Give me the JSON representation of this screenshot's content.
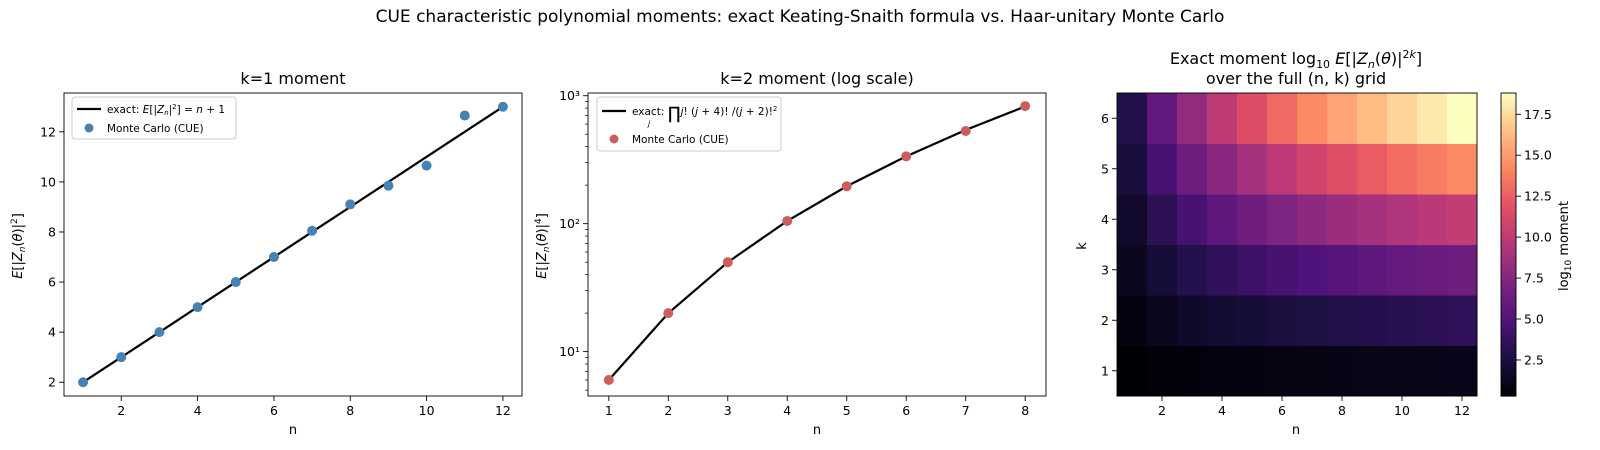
{
  "suptitle": "CUE characteristic polynomial moments: exact Keating-Snaith formula vs. Haar-unitary Monte Carlo",
  "chart_data": [
    {
      "type": "line",
      "title": "k=1 moment",
      "xlabel": "n",
      "ylabel": "E[|Z_n(θ)|²]",
      "xlim": [
        0.5,
        12.5
      ],
      "ylim": [
        1.45,
        13.55
      ],
      "xticks": [
        "2",
        "4",
        "6",
        "8",
        "10",
        "12"
      ],
      "yticks": [
        "2",
        "4",
        "6",
        "8",
        "10",
        "12"
      ],
      "legend_position": "upper-left",
      "series": [
        {
          "name": "exact: E[|Z_n|²] = n + 1",
          "style": "line",
          "color": "#000000",
          "x": [
            1,
            2,
            3,
            4,
            5,
            6,
            7,
            8,
            9,
            10,
            11,
            12
          ],
          "y": [
            2,
            3,
            4,
            5,
            6,
            7,
            8,
            9,
            10,
            11,
            12,
            13
          ]
        },
        {
          "name": "Monte Carlo (CUE)",
          "style": "scatter",
          "color": "#4682b4",
          "x": [
            1,
            2,
            3,
            4,
            5,
            6,
            7,
            8,
            9,
            10,
            11,
            12
          ],
          "y": [
            2.0,
            3.0,
            4.0,
            5.0,
            6.0,
            7.0,
            8.05,
            9.1,
            9.85,
            10.65,
            12.65,
            13.0
          ]
        }
      ]
    },
    {
      "type": "line",
      "title": "k=2 moment (log scale)",
      "xlabel": "n",
      "ylabel": "E[|Z_n(θ)|⁴]",
      "yscale": "log",
      "xlim": [
        0.65,
        8.35
      ],
      "ylim": [
        4.5,
        1050
      ],
      "xticks": [
        "1",
        "2",
        "3",
        "4",
        "5",
        "6",
        "7",
        "8"
      ],
      "yticks": [
        "10¹",
        "10²",
        "10³"
      ],
      "legend_position": "upper-left",
      "series": [
        {
          "name": "exact: ∏ j!(j+4)!/(j+2)!²",
          "style": "line",
          "color": "#000000",
          "x": [
            1,
            2,
            3,
            4,
            5,
            6,
            7,
            8
          ],
          "y": [
            6,
            20,
            50,
            105,
            196,
            336,
            540,
            825
          ]
        },
        {
          "name": "Monte Carlo (CUE)",
          "style": "scatter",
          "color": "#cd5c5c",
          "x": [
            1,
            2,
            3,
            4,
            5,
            6,
            7,
            8
          ],
          "y": [
            6,
            20,
            50,
            105,
            196,
            336,
            530,
            830
          ]
        }
      ]
    },
    {
      "type": "heatmap",
      "title_line1": "Exact moment log₁₀ E[|Z_n(θ)|^2k]",
      "title_line2": "over the full (n, k) grid",
      "xlabel": "n",
      "ylabel": "k",
      "x": [
        1,
        2,
        3,
        4,
        5,
        6,
        7,
        8,
        9,
        10,
        11,
        12
      ],
      "y": [
        1,
        2,
        3,
        4,
        5,
        6
      ],
      "xticks": [
        "2",
        "4",
        "6",
        "8",
        "10",
        "12"
      ],
      "yticks": [
        "1",
        "2",
        "3",
        "4",
        "5",
        "6"
      ],
      "colormap": "magma",
      "vmin": 0.3,
      "vmax": 18.8,
      "colorbar_label": "log₁₀ moment",
      "colorbar_ticks": [
        "2.5",
        "5.0",
        "7.5",
        "10.0",
        "12.5",
        "15.0",
        "17.5"
      ],
      "colorbar_tick_values": [
        2.5,
        5.0,
        7.5,
        10.0,
        12.5,
        15.0,
        17.5
      ],
      "values": [
        [
          0.3,
          0.48,
          0.6,
          0.7,
          0.78,
          0.85,
          0.9,
          0.95,
          1.0,
          1.04,
          1.08,
          1.11
        ],
        [
          0.78,
          1.3,
          1.7,
          2.02,
          2.29,
          2.53,
          2.73,
          2.92,
          3.08,
          3.23,
          3.37,
          3.5
        ],
        [
          1.3,
          2.3,
          3.05,
          3.65,
          4.16,
          4.6,
          4.98,
          5.33,
          5.64,
          5.93,
          6.19,
          6.43
        ],
        [
          1.85,
          3.4,
          4.6,
          5.6,
          6.45,
          7.18,
          7.83,
          8.4,
          8.92,
          9.39,
          9.82,
          10.22
        ],
        [
          2.42,
          4.6,
          6.3,
          7.7,
          8.9,
          9.95,
          10.88,
          11.7,
          12.45,
          13.12,
          13.75,
          14.32
        ],
        [
          3.0,
          5.86,
          8.1,
          10.0,
          11.6,
          13.0,
          14.25,
          15.35,
          16.35,
          17.25,
          18.05,
          18.8
        ]
      ]
    }
  ]
}
